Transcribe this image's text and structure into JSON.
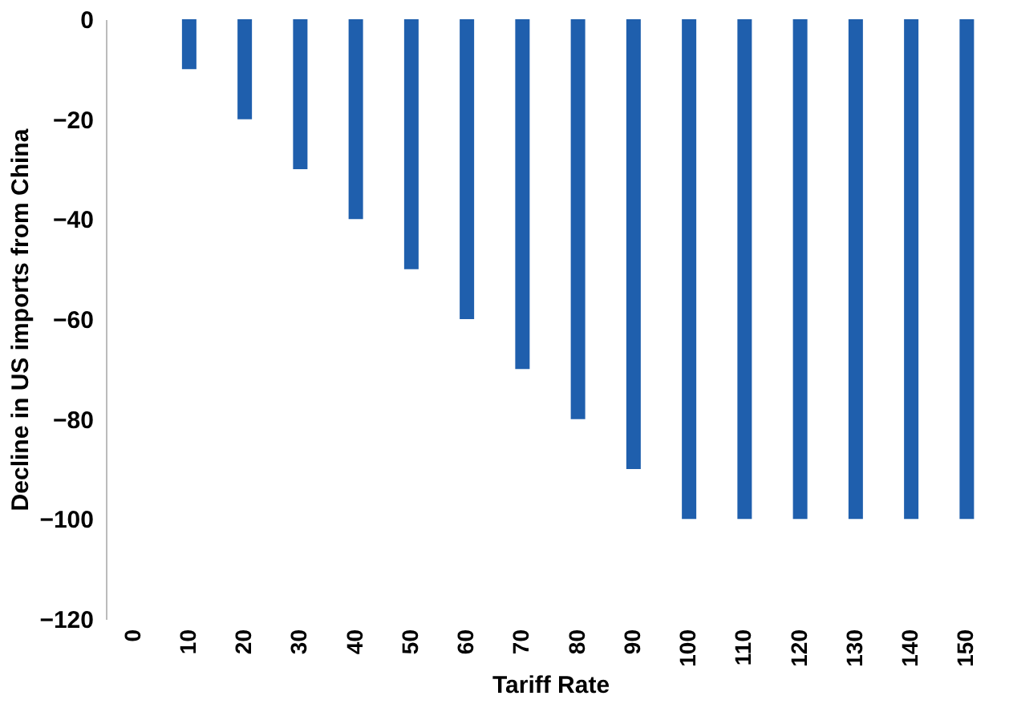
{
  "chart_data": {
    "type": "bar",
    "xlabel": "Tariff Rate",
    "ylabel": "Decline in US imports from China",
    "categories": [
      "0",
      "10",
      "20",
      "30",
      "40",
      "50",
      "60",
      "70",
      "80",
      "90",
      "100",
      "110",
      "120",
      "130",
      "140",
      "150"
    ],
    "values": [
      0,
      -10,
      -20,
      -30,
      -40,
      -50,
      -60,
      -70,
      -80,
      -90,
      -100,
      -100,
      -100,
      -100,
      -100,
      -100
    ],
    "color": "#1f5fad",
    "ylim": [
      -120,
      0
    ],
    "yticks": [
      -120,
      -100,
      -80,
      -60,
      -40,
      -20,
      0
    ],
    "grid": false
  }
}
